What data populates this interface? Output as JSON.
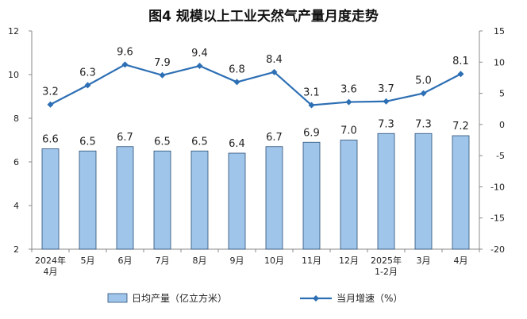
{
  "chart_data": {
    "type": "bar+line",
    "title": "图4  规模以上工业天然气产量月度走势",
    "categories": [
      [
        "2024年",
        "4月"
      ],
      [
        "5月"
      ],
      [
        "6月"
      ],
      [
        "7月"
      ],
      [
        "8月"
      ],
      [
        "9月"
      ],
      [
        "10月"
      ],
      [
        "11月"
      ],
      [
        "12月"
      ],
      [
        "2025年",
        "1-2月"
      ],
      [
        "3月"
      ],
      [
        "4月"
      ]
    ],
    "series": [
      {
        "name": "日均产量（亿立方米）",
        "type": "bar",
        "axis": "left",
        "color": "#9fc6ea",
        "values": [
          6.6,
          6.5,
          6.7,
          6.5,
          6.5,
          6.4,
          6.7,
          6.9,
          7.0,
          7.3,
          7.3,
          7.2
        ],
        "labels": [
          "6.6",
          "6.5",
          "6.7",
          "6.5",
          "6.5",
          "6.4",
          "6.7",
          "6.9",
          "7.0",
          "7.3",
          "7.3",
          "7.2"
        ]
      },
      {
        "name": "当月增速（%）",
        "type": "line",
        "axis": "right",
        "color": "#2d6fb4",
        "values": [
          3.2,
          6.3,
          9.6,
          7.9,
          9.4,
          6.8,
          8.4,
          3.1,
          3.6,
          3.7,
          5.0,
          8.1
        ],
        "labels": [
          "3.2",
          "6.3",
          "9.6",
          "7.9",
          "9.4",
          "6.8",
          "8.4",
          "3.1",
          "3.6",
          "3.7",
          "5.0",
          "8.1"
        ]
      }
    ],
    "y_left": {
      "lim": [
        2,
        12
      ],
      "ticks": [
        "2",
        "4",
        "6",
        "8",
        "10",
        "12"
      ]
    },
    "y_right": {
      "lim": [
        -20,
        15
      ],
      "ticks": [
        "-20",
        "-15",
        "-10",
        "-5",
        "0",
        "5",
        "10",
        "15"
      ]
    },
    "grid": false,
    "legend_position": "bottom"
  }
}
